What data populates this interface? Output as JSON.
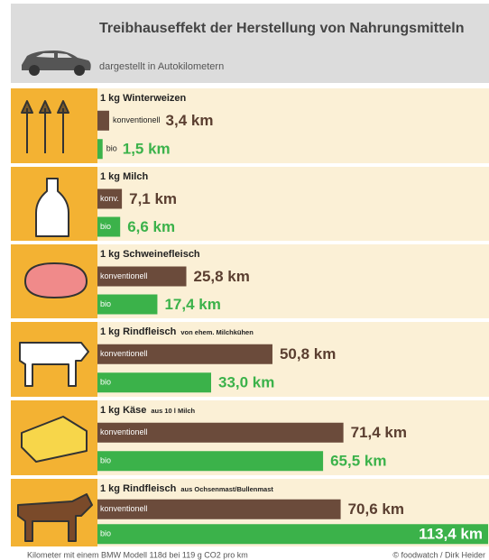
{
  "chart_data": {
    "type": "bar",
    "orientation": "horizontal",
    "title": "Treibhauseffekt der Herstellung von Nahrungsmitteln",
    "subtitle": "dargestellt in Autokilometern",
    "categories": [
      "1 kg Winterweizen",
      "1 kg Milch",
      "1 kg Schweinefleisch",
      "1 kg Rindfleisch",
      "1 kg Käse",
      "1 kg Rindfleisch"
    ],
    "category_notes": [
      null,
      null,
      null,
      "von ehem. Milchkühen",
      "aus 10 l Milch",
      "aus Ochsenmast/Bullenmast"
    ],
    "series": [
      {
        "color": "#6b4b3b",
        "label_color": "#5a3e30",
        "bar_labels": [
          "konventionell",
          "konv.",
          "konventionell",
          "konventionell",
          "konventionell",
          "konventionell"
        ],
        "values": [
          3.4,
          7.1,
          25.8,
          50.8,
          71.4,
          70.6
        ],
        "value_labels": [
          "3,4 km",
          "7,1 km",
          "25,8 km",
          "50,8 km",
          "71,4 km",
          "70,6 km"
        ]
      },
      {
        "color": "#3bb24a",
        "label_color": "#3bb24a",
        "bar_labels": [
          "bio",
          "bio",
          "bio",
          "bio",
          "bio",
          "bio"
        ],
        "values": [
          1.5,
          6.6,
          17.4,
          33.0,
          65.5,
          113.4
        ],
        "value_labels": [
          "1,5 km",
          "6,6 km",
          "17,4 km",
          "33,0 km",
          "65,5 km",
          "113,4 km"
        ]
      }
    ],
    "xlim": [
      0,
      113.4
    ],
    "footnote": "Kilometer mit einem BMW Modell 118d bei 119 g CO2 pro km",
    "credit": "© foodwatch / Dirk Heider"
  }
}
